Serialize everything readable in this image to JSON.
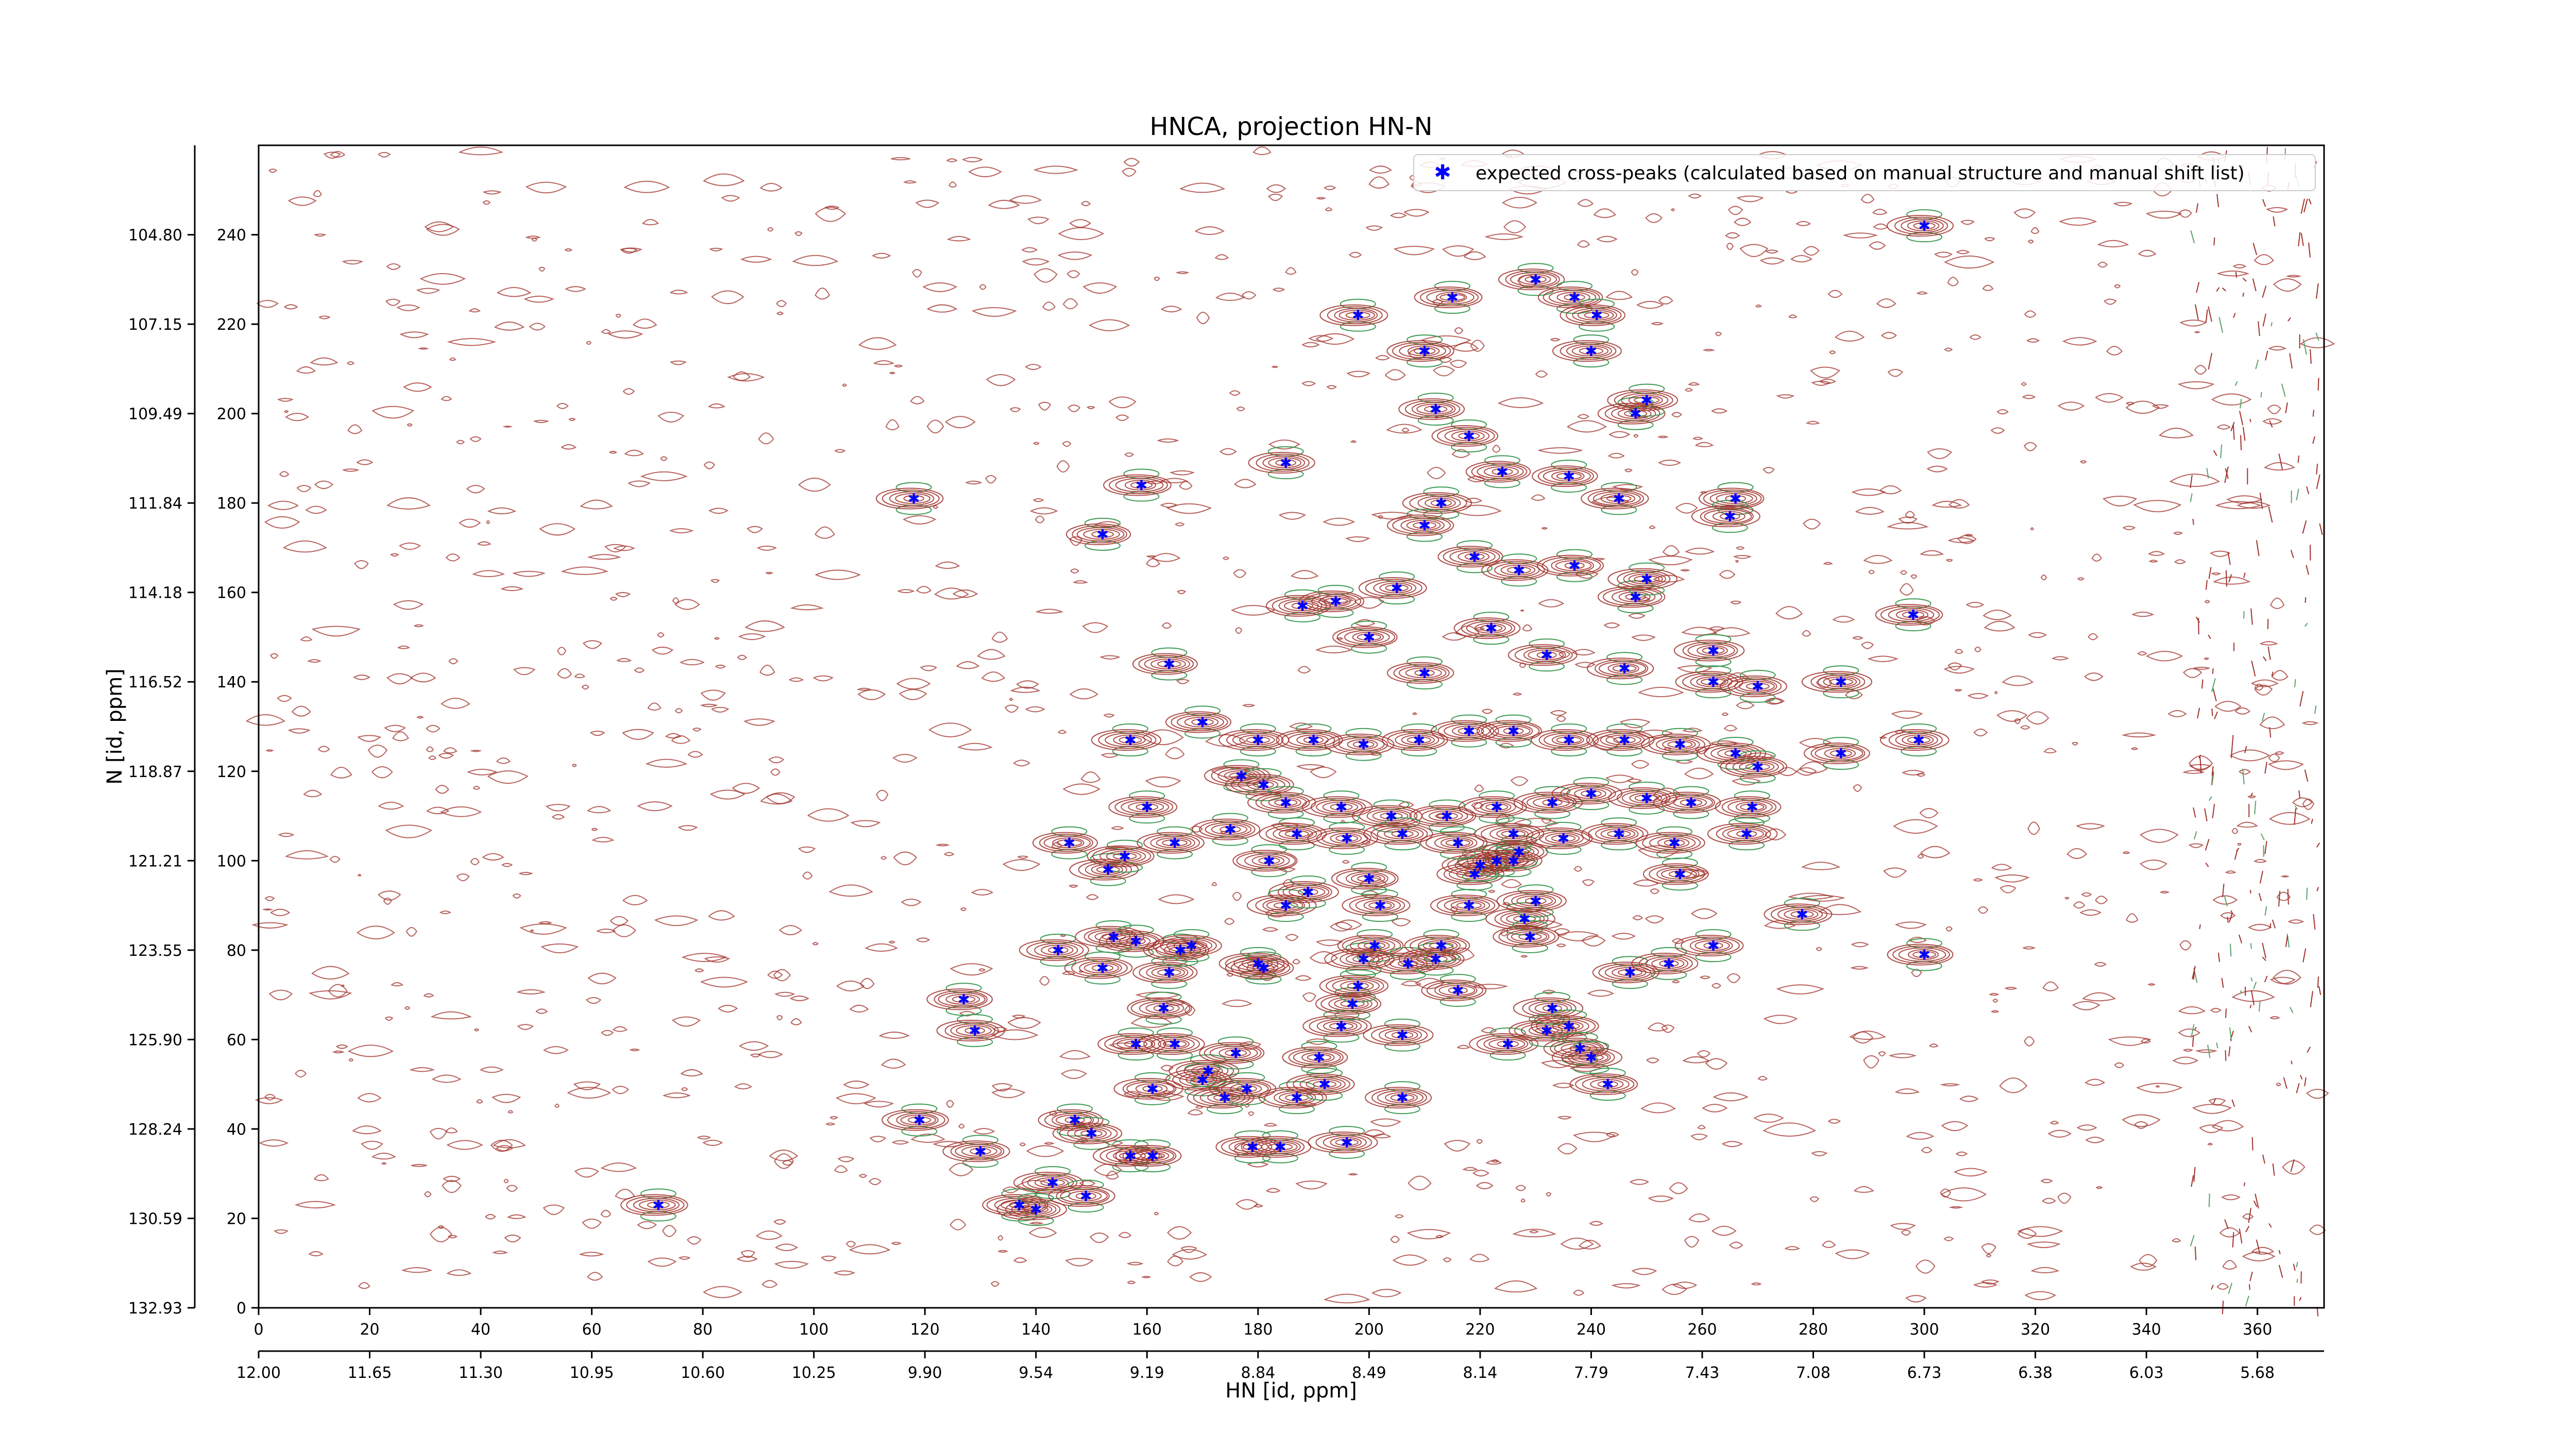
{
  "chart_data": {
    "type": "scatter",
    "title": "HNCA, projection HN-N",
    "xlabel": "HN [id, ppm]",
    "ylabel": "N [id, ppm]",
    "xlim": [
      0,
      372
    ],
    "ylim": [
      0,
      260
    ],
    "x_ticks": [
      "0",
      "20",
      "40",
      "60",
      "80",
      "100",
      "120",
      "140",
      "160",
      "180",
      "200",
      "220",
      "240",
      "260",
      "280",
      "300",
      "320",
      "340",
      "360"
    ],
    "x_ppm_ticks": [
      "12.00",
      "11.65",
      "11.30",
      "10.95",
      "10.60",
      "10.25",
      "9.90",
      "9.54",
      "9.19",
      "8.84",
      "8.49",
      "8.14",
      "7.79",
      "7.43",
      "7.08",
      "6.73",
      "6.38",
      "6.03",
      "5.68"
    ],
    "y_ticks": [
      "0",
      "20",
      "40",
      "60",
      "80",
      "100",
      "120",
      "140",
      "160",
      "180",
      "200",
      "220",
      "240"
    ],
    "y_ppm_ticks": [
      "132.93",
      "130.59",
      "128.24",
      "125.90",
      "123.55",
      "121.21",
      "118.87",
      "116.52",
      "114.18",
      "111.84",
      "109.49",
      "107.15",
      "104.80"
    ],
    "grid": false,
    "legend_position": "top-right",
    "series": [
      {
        "name": "expected cross-peaks (calculated based on manual structure and manual shift list)",
        "color": "#0000ff",
        "marker": "star",
        "points": [
          [
            72,
            23
          ],
          [
            119,
            42
          ],
          [
            129,
            62
          ],
          [
            127,
            69
          ],
          [
            130,
            35
          ],
          [
            137,
            23
          ],
          [
            140,
            22
          ],
          [
            143,
            28
          ],
          [
            144,
            80
          ],
          [
            146,
            104
          ],
          [
            147,
            42
          ],
          [
            149,
            25
          ],
          [
            150,
            39
          ],
          [
            152,
            76
          ],
          [
            153,
            98
          ],
          [
            154,
            83
          ],
          [
            156,
            101
          ],
          [
            157,
            34
          ],
          [
            158,
            59
          ],
          [
            158,
            82
          ],
          [
            160,
            112
          ],
          [
            161,
            49
          ],
          [
            161,
            34
          ],
          [
            163,
            67
          ],
          [
            164,
            75
          ],
          [
            165,
            59
          ],
          [
            166,
            80
          ],
          [
            168,
            81
          ],
          [
            170,
            51
          ],
          [
            171,
            53
          ],
          [
            174,
            47
          ],
          [
            176,
            57
          ],
          [
            178,
            49
          ],
          [
            179,
            36
          ],
          [
            180,
            77
          ],
          [
            181,
            76
          ],
          [
            182,
            100
          ],
          [
            184,
            36
          ],
          [
            185,
            90
          ],
          [
            187,
            47
          ],
          [
            189,
            93
          ],
          [
            191,
            56
          ],
          [
            192,
            50
          ],
          [
            195,
            63
          ],
          [
            196,
            37
          ],
          [
            197,
            68
          ],
          [
            198,
            72
          ],
          [
            199,
            78
          ],
          [
            200,
            96
          ],
          [
            201,
            81
          ],
          [
            202,
            90
          ],
          [
            206,
            47
          ],
          [
            206,
            61
          ],
          [
            207,
            77
          ],
          [
            212,
            78
          ],
          [
            213,
            81
          ],
          [
            216,
            71
          ],
          [
            218,
            90
          ],
          [
            219,
            97
          ],
          [
            220,
            99
          ],
          [
            223,
            100
          ],
          [
            225,
            59
          ],
          [
            226,
            100
          ],
          [
            227,
            102
          ],
          [
            228,
            87
          ],
          [
            229,
            83
          ],
          [
            230,
            91
          ],
          [
            232,
            62
          ],
          [
            233,
            67
          ],
          [
            236,
            63
          ],
          [
            238,
            58
          ],
          [
            240,
            56
          ],
          [
            243,
            50
          ],
          [
            247,
            75
          ],
          [
            254,
            77
          ],
          [
            256,
            97
          ],
          [
            262,
            81
          ],
          [
            278,
            88
          ],
          [
            300,
            79
          ],
          [
            300,
            242
          ],
          [
            159,
            184
          ],
          [
            152,
            173
          ],
          [
            118,
            181
          ],
          [
            185,
            189
          ],
          [
            215,
            226
          ],
          [
            230,
            230
          ],
          [
            237,
            226
          ],
          [
            241,
            222
          ],
          [
            210,
            214
          ],
          [
            240,
            214
          ],
          [
            212,
            201
          ],
          [
            248,
            200
          ],
          [
            250,
            203
          ],
          [
            198,
            222
          ],
          [
            213,
            180
          ],
          [
            224,
            187
          ],
          [
            236,
            186
          ],
          [
            218,
            195
          ],
          [
            245,
            181
          ],
          [
            266,
            181
          ],
          [
            265,
            177
          ],
          [
            210,
            175
          ],
          [
            219,
            168
          ],
          [
            227,
            165
          ],
          [
            237,
            166
          ],
          [
            248,
            159
          ],
          [
            250,
            163
          ],
          [
            205,
            161
          ],
          [
            222,
            152
          ],
          [
            262,
            147
          ],
          [
            188,
            157
          ],
          [
            194,
            158
          ],
          [
            200,
            150
          ],
          [
            210,
            142
          ],
          [
            232,
            146
          ],
          [
            246,
            143
          ],
          [
            262,
            140
          ],
          [
            270,
            139
          ],
          [
            285,
            140
          ],
          [
            298,
            155
          ],
          [
            164,
            144
          ],
          [
            157,
            127
          ],
          [
            170,
            131
          ],
          [
            180,
            127
          ],
          [
            190,
            127
          ],
          [
            199,
            126
          ],
          [
            209,
            127
          ],
          [
            218,
            129
          ],
          [
            226,
            129
          ],
          [
            236,
            127
          ],
          [
            246,
            127
          ],
          [
            256,
            126
          ],
          [
            266,
            124
          ],
          [
            270,
            121
          ],
          [
            285,
            124
          ],
          [
            299,
            127
          ],
          [
            177,
            119
          ],
          [
            181,
            117
          ],
          [
            185,
            113
          ],
          [
            195,
            112
          ],
          [
            204,
            110
          ],
          [
            214,
            110
          ],
          [
            223,
            112
          ],
          [
            233,
            113
          ],
          [
            240,
            115
          ],
          [
            250,
            114
          ],
          [
            258,
            113
          ],
          [
            269,
            112
          ],
          [
            165,
            104
          ],
          [
            175,
            107
          ],
          [
            187,
            106
          ],
          [
            196,
            105
          ],
          [
            206,
            106
          ],
          [
            216,
            104
          ],
          [
            226,
            106
          ],
          [
            235,
            105
          ],
          [
            245,
            106
          ],
          [
            255,
            104
          ],
          [
            268,
            106
          ]
        ]
      }
    ]
  }
}
